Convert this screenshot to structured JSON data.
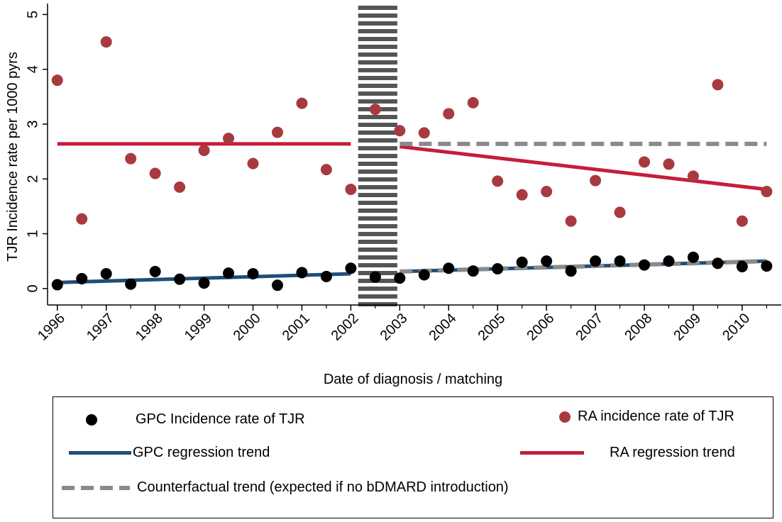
{
  "chart_data": {
    "type": "scatter",
    "xlabel": "Date of diagnosis / matching",
    "ylabel": "TJR Incidence rate per 1000 pyrs",
    "xlim": [
      1995.8,
      2010.8
    ],
    "ylim": [
      -0.3,
      5.2
    ],
    "xticks": [
      "1996",
      "1997",
      "1998",
      "1999",
      "2000",
      "2001",
      "2002",
      "2003",
      "2004",
      "2005",
      "2006",
      "2007",
      "2008",
      "2009",
      "2010"
    ],
    "yticks": [
      "0",
      "1",
      "2",
      "3",
      "4",
      "5"
    ],
    "intervention_band": [
      2002.15,
      2002.95
    ],
    "colors": {
      "gpc_points": "#000000",
      "ra_points": "#a83a3f",
      "gpc_trend": "#1f4e79",
      "ra_trend": "#c41e3a",
      "counterfactual": "#8a8a8a",
      "band": "#555555"
    },
    "series": [
      {
        "name": "GPC Incidence rate of TJR",
        "kind": "points",
        "x": [
          1996.0,
          1996.5,
          1997.0,
          1997.5,
          1998.0,
          1998.5,
          1999.0,
          1999.5,
          2000.0,
          2000.5,
          2001.0,
          2001.5,
          2002.0,
          2002.5,
          2003.0,
          2003.5,
          2004.0,
          2004.5,
          2005.0,
          2005.5,
          2006.0,
          2006.5,
          2007.0,
          2007.5,
          2008.0,
          2008.5,
          2009.0,
          2009.5,
          2010.0,
          2010.5
        ],
        "y": [
          0.07,
          0.18,
          0.27,
          0.08,
          0.31,
          0.17,
          0.1,
          0.28,
          0.27,
          0.06,
          0.29,
          0.22,
          0.37,
          0.21,
          0.19,
          0.25,
          0.37,
          0.32,
          0.36,
          0.48,
          0.5,
          0.32,
          0.5,
          0.5,
          0.43,
          0.5,
          0.57,
          0.46,
          0.4,
          0.41
        ]
      },
      {
        "name": "RA incidence rate of TJR",
        "kind": "points",
        "x": [
          1996.0,
          1996.5,
          1997.0,
          1997.5,
          1998.0,
          1998.5,
          1999.0,
          1999.5,
          2000.0,
          2000.5,
          2001.0,
          2001.5,
          2002.0,
          2002.5,
          2003.0,
          2003.5,
          2004.0,
          2004.5,
          2005.0,
          2005.5,
          2006.0,
          2006.5,
          2007.0,
          2007.5,
          2008.0,
          2008.5,
          2009.0,
          2009.5,
          2010.0,
          2010.5
        ],
        "y": [
          3.8,
          1.27,
          4.5,
          2.37,
          2.1,
          1.85,
          2.52,
          2.74,
          2.28,
          2.85,
          3.38,
          2.17,
          1.81,
          3.27,
          2.88,
          2.84,
          3.19,
          3.39,
          1.96,
          1.71,
          1.77,
          1.23,
          1.97,
          1.39,
          2.31,
          2.27,
          2.05,
          3.72,
          1.23,
          1.77
        ]
      },
      {
        "name": "GPC regression trend",
        "kind": "segments",
        "segments": [
          {
            "x": [
              1996.0,
              2002.0
            ],
            "y": [
              0.11,
              0.27
            ]
          },
          {
            "x": [
              2003.0,
              2010.5
            ],
            "y": [
              0.31,
              0.5
            ]
          }
        ]
      },
      {
        "name": "RA regression trend",
        "kind": "segments",
        "segments": [
          {
            "x": [
              1996.0,
              2002.0
            ],
            "y": [
              2.64,
              2.64
            ]
          },
          {
            "x": [
              2003.0,
              2010.5
            ],
            "y": [
              2.59,
              1.81
            ]
          }
        ]
      },
      {
        "name": "Counterfactual trend (expected if no bDMARD introduction)",
        "kind": "dashed-segments",
        "segments": [
          {
            "x": [
              2003.0,
              2010.5
            ],
            "y": [
              2.64,
              2.64
            ]
          },
          {
            "x": [
              2003.0,
              2010.5
            ],
            "y": [
              0.31,
              0.5
            ]
          }
        ]
      }
    ],
    "legend": {
      "position": "bottom",
      "gpc_points": "GPC Incidence rate of TJR",
      "ra_points": "RA incidence rate of TJR",
      "gpc_trend": "GPC regression trend",
      "ra_trend": "RA regression trend",
      "counterfactual": "Counterfactual trend (expected if no bDMARD introduction)"
    }
  }
}
